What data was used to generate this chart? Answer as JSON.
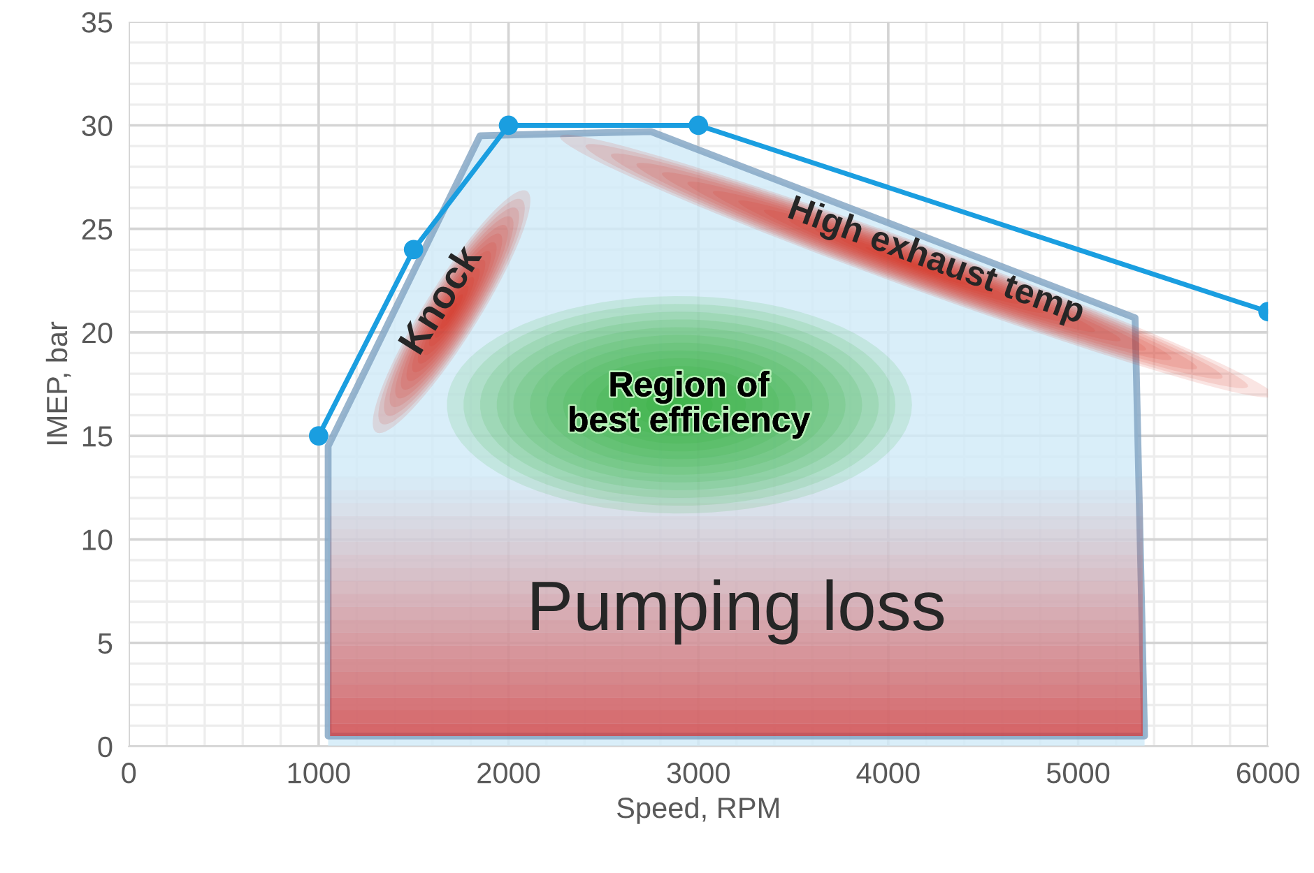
{
  "chart_data": {
    "type": "line",
    "xlabel": "Speed, RPM",
    "ylabel": "IMEP, bar",
    "series": [
      {
        "type": "area",
        "color": "#cfeaf8",
        "x": [
          1050,
          1050,
          1850,
          2750,
          5300,
          5350
        ],
        "values": [
          0.5,
          14.5,
          29.5,
          29.7,
          20.7,
          0.5
        ]
      },
      {
        "color": "#1a9ee0",
        "x": [
          1000,
          1500,
          2000,
          3000,
          6000
        ],
        "values": [
          15,
          24,
          30,
          30,
          21
        ],
        "marker": "circle"
      }
    ],
    "annotations": [
      "Knock",
      "High exhaust temp",
      "Region of\nbest efficiency",
      "Pumping loss"
    ],
    "xlim": [
      0,
      6000
    ],
    "xticks": [
      0,
      1000,
      2000,
      3000,
      4000,
      5000,
      6000
    ],
    "ylim": [
      0,
      35
    ],
    "yticks": [
      0,
      5,
      10,
      15,
      20,
      25,
      30,
      35
    ],
    "grid": true,
    "legend": false
  }
}
